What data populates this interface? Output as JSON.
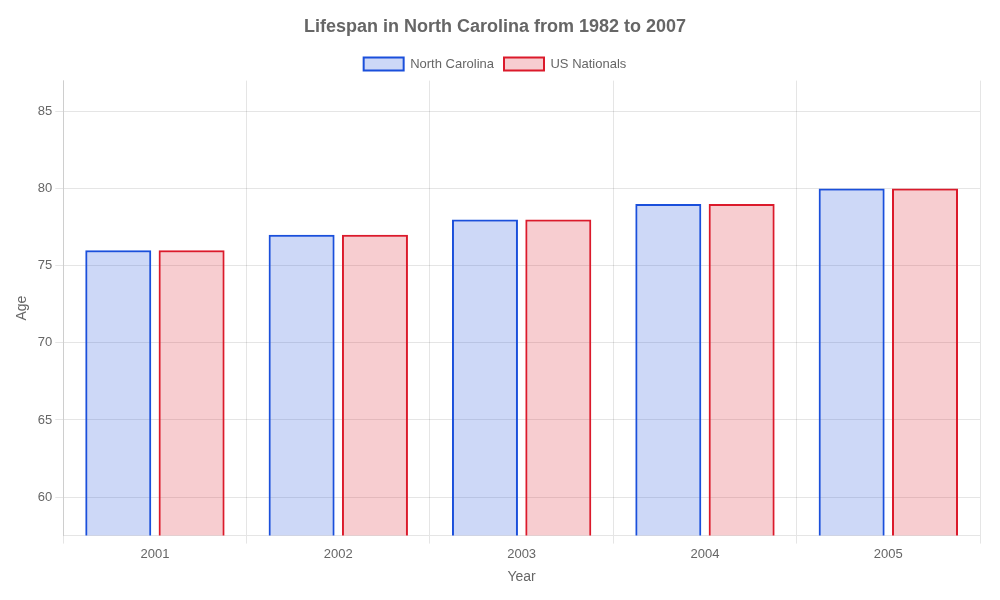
{
  "chart_data": {
    "type": "bar",
    "title": "Lifespan in North Carolina from 1982 to 2007",
    "xlabel": "Year",
    "ylabel": "Age",
    "categories": [
      "2001",
      "2002",
      "2003",
      "2004",
      "2005"
    ],
    "series": [
      {
        "name": "North Carolina",
        "color": "#1a4fdb",
        "values": [
          76,
          77,
          78,
          79,
          80
        ]
      },
      {
        "name": "US Nationals",
        "color": "#db1a2b",
        "values": [
          76,
          77,
          78,
          79,
          80
        ]
      }
    ],
    "ylim": [
      57.5,
      87
    ],
    "yticks": [
      60,
      65,
      70,
      75,
      80,
      85
    ],
    "grid": true,
    "legend": "top"
  }
}
